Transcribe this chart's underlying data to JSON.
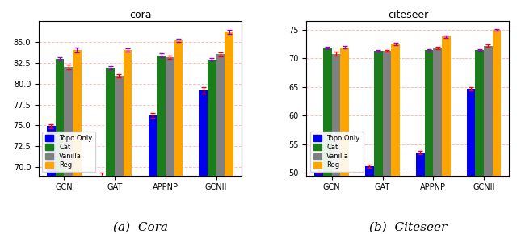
{
  "cora": {
    "title": "cora",
    "caption": "(a)  Cora",
    "categories": [
      "GCN",
      "GAT",
      "APPNP",
      "GCNII"
    ],
    "series": {
      "Topo Only": {
        "values": [
          74.9,
          69.0,
          76.2,
          79.2
        ],
        "errors": [
          0.25,
          0.35,
          0.3,
          0.4
        ],
        "color": "#0000ee",
        "ecolor": "red"
      },
      "Cat": {
        "values": [
          83.0,
          81.9,
          83.4,
          82.9
        ],
        "errors": [
          0.2,
          0.15,
          0.2,
          0.15
        ],
        "color": "#1a7e1a",
        "ecolor": "#9900cc"
      },
      "Vanilla": {
        "values": [
          82.0,
          80.9,
          83.2,
          83.5
        ],
        "errors": [
          0.25,
          0.2,
          0.2,
          0.2
        ],
        "color": "#808080",
        "ecolor": "red"
      },
      "Reg": {
        "values": [
          84.0,
          84.0,
          85.2,
          86.2
        ],
        "errors": [
          0.3,
          0.2,
          0.2,
          0.25
        ],
        "color": "#ffa500",
        "ecolor": "#9900cc"
      }
    },
    "ylim": [
      69.0,
      87.5
    ],
    "yticks": [
      70.0,
      72.5,
      75.0,
      77.5,
      80.0,
      82.5,
      85.0
    ]
  },
  "citeseer": {
    "title": "citeseer",
    "caption": "(b)  Citeseer",
    "categories": [
      "GCN",
      "GAT",
      "APPNP",
      "GCNII"
    ],
    "series": {
      "Topo Only": {
        "values": [
          50.2,
          51.1,
          53.5,
          64.7
        ],
        "errors": [
          0.25,
          0.3,
          0.3,
          0.25
        ],
        "color": "#0000ee",
        "ecolor": "red"
      },
      "Cat": {
        "values": [
          71.8,
          71.3,
          71.4,
          71.4
        ],
        "errors": [
          0.2,
          0.15,
          0.2,
          0.15
        ],
        "color": "#1a7e1a",
        "ecolor": "#9900cc"
      },
      "Vanilla": {
        "values": [
          70.8,
          71.3,
          71.8,
          72.2
        ],
        "errors": [
          0.3,
          0.2,
          0.25,
          0.2
        ],
        "color": "#808080",
        "ecolor": "red"
      },
      "Reg": {
        "values": [
          71.9,
          72.5,
          73.8,
          75.0
        ],
        "errors": [
          0.2,
          0.2,
          0.2,
          0.15
        ],
        "color": "#ffa500",
        "ecolor": "#9900cc"
      }
    },
    "ylim": [
      49.5,
      76.5
    ],
    "yticks": [
      50.0,
      55.0,
      60.0,
      65.0,
      70.0,
      75.0
    ]
  },
  "bar_width": 0.17,
  "grid_color": "#ffaaaa",
  "grid_linestyle": "--",
  "grid_alpha": 0.8,
  "legend_labels": [
    "Topo Only",
    "Cat",
    "Vanilla",
    "Reg"
  ],
  "legend_colors": [
    "#0000ee",
    "#1a7e1a",
    "#808080",
    "#ffa500"
  ]
}
